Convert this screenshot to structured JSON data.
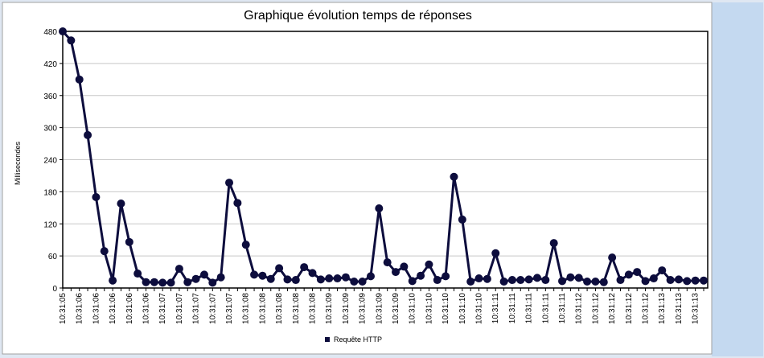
{
  "chart_data": {
    "type": "line",
    "title": "Graphique évolution temps de réponses",
    "y_label": "Millisecondes",
    "categories": [
      "10:31:05",
      null,
      "10:31:06",
      null,
      "10:31:06",
      null,
      "10:31:06",
      null,
      "10:31:06",
      null,
      "10:31:06",
      null,
      "10:31:07",
      null,
      "10:31:07",
      null,
      "10:31:07",
      null,
      "10:31:07",
      null,
      "10:31:07",
      null,
      "10:31:08",
      null,
      "10:31:08",
      null,
      "10:31:08",
      null,
      "10:31:08",
      null,
      "10:31:08",
      null,
      "10:31:09",
      null,
      "10:31:09",
      null,
      "10:31:09",
      null,
      "10:31:09",
      null,
      "10:31:09",
      null,
      "10:31:10",
      null,
      "10:31:10",
      null,
      "10:31:10",
      null,
      "10:31:10",
      null,
      "10:31:10",
      null,
      "10:31:11",
      null,
      "10:31:11",
      null,
      "10:31:11",
      null,
      "10:31:11",
      null,
      "10:31:11",
      null,
      "10:31:12",
      null,
      "10:31:12",
      null,
      "10:31:12",
      null,
      "10:31:12",
      null,
      "10:31:12",
      null,
      "10:31:13",
      null,
      "10:31:13",
      null,
      "10:31:13",
      null
    ],
    "series": [
      {
        "name": "Requête HTTP",
        "color": "#0d0d3d",
        "values": [
          480,
          463,
          390,
          286,
          170,
          69,
          14,
          158,
          86,
          27,
          11,
          11,
          10,
          10,
          36,
          11,
          17,
          25,
          10,
          20,
          197,
          159,
          81,
          25,
          23,
          17,
          37,
          16,
          15,
          39,
          28,
          16,
          18,
          18,
          20,
          12,
          12,
          22,
          149,
          48,
          30,
          40,
          13,
          23,
          44,
          15,
          22,
          208,
          128,
          12,
          18,
          17,
          65,
          12,
          15,
          15,
          16,
          19,
          15,
          84,
          13,
          20,
          19,
          12,
          12,
          11,
          57,
          15,
          25,
          30,
          13,
          18,
          33,
          15,
          16,
          13,
          14,
          14
        ]
      }
    ],
    "ylim": [
      0,
      480
    ],
    "yticks": [
      0,
      60,
      120,
      180,
      240,
      300,
      360,
      420,
      480
    ],
    "grid": true
  }
}
